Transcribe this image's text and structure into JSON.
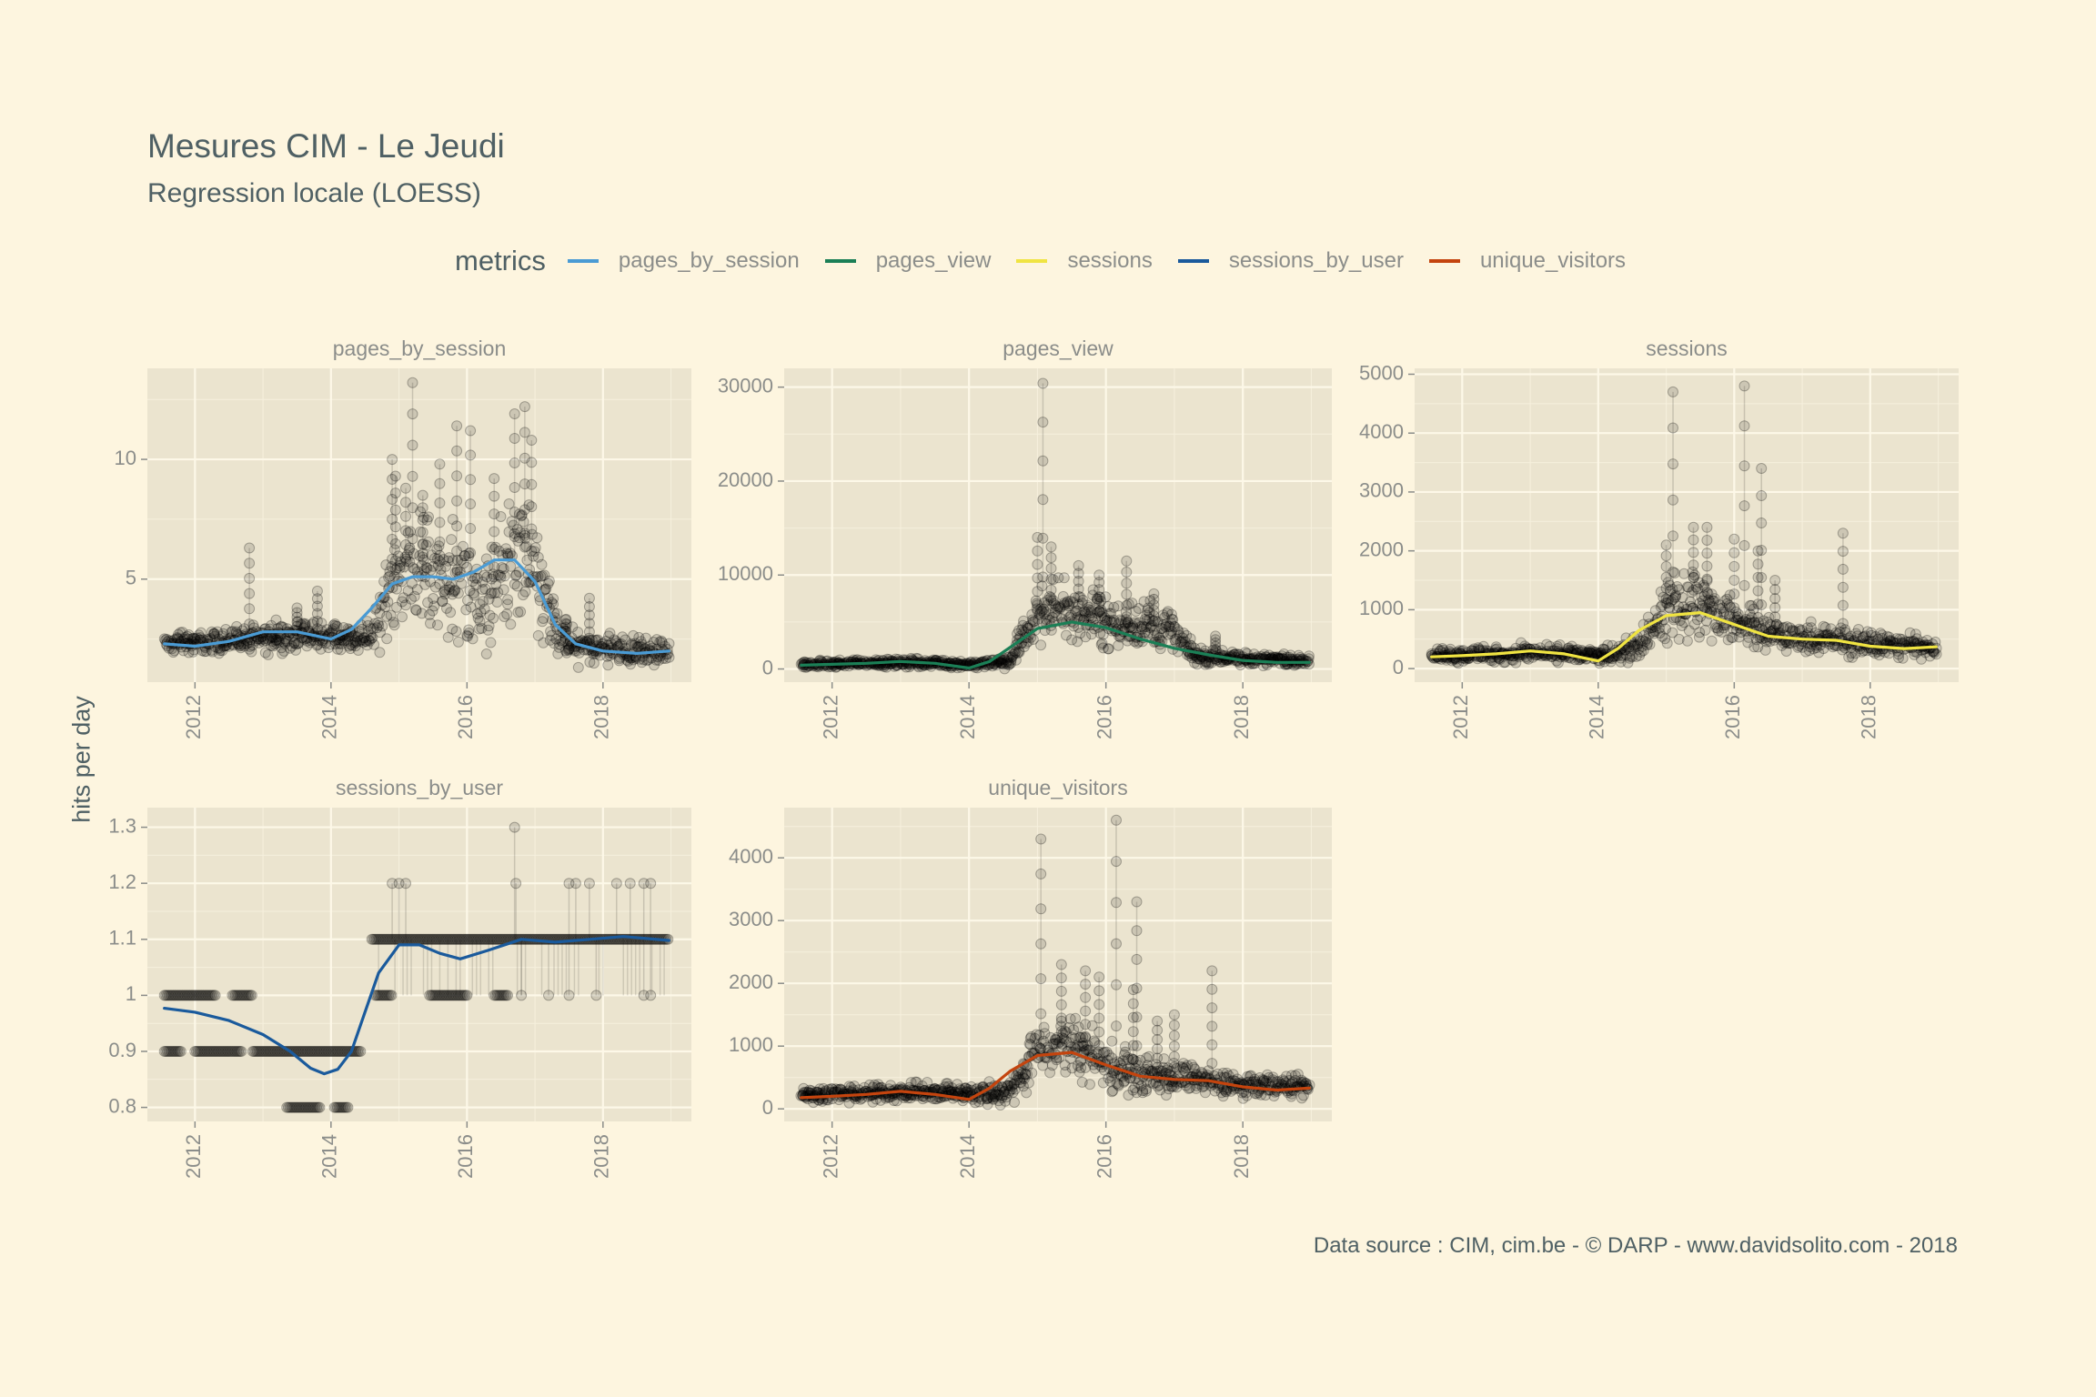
{
  "title": "Mesures CIM - Le Jeudi",
  "subtitle": "Regression locale (LOESS)",
  "ylabel": "hits per day",
  "caption": "Data source : CIM, cim.be - © DARP - www.davidsolito.com - 2018",
  "legend": {
    "title": "metrics",
    "items": [
      {
        "label": "pages_by_session",
        "color": "#4a9bd4"
      },
      {
        "label": "pages_view",
        "color": "#1b7f56"
      },
      {
        "label": "sessions",
        "color": "#f0e442"
      },
      {
        "label": "sessions_by_user",
        "color": "#1a5a9c"
      },
      {
        "label": "unique_visitors",
        "color": "#c4440e"
      }
    ]
  },
  "chart_data": [
    {
      "type": "scatter",
      "name": "pages_by_session",
      "color": "#4a9bd4",
      "xlim": [
        2011.3,
        2019.3
      ],
      "ylim": [
        0.7,
        13.8
      ],
      "yticks": [
        5,
        10
      ],
      "xticks": [
        2012,
        2014,
        2016,
        2018
      ],
      "x_span": [
        2011.55,
        2018.97
      ],
      "band": [
        [
          2011.55,
          1.8,
          2.9
        ],
        [
          2012.5,
          1.8,
          3.0
        ],
        [
          2013.3,
          1.8,
          3.5
        ],
        [
          2014.0,
          2.0,
          3.2
        ],
        [
          2014.4,
          2.0,
          3.0
        ],
        [
          2014.6,
          1.5,
          3.5
        ],
        [
          2014.9,
          2.5,
          7.5
        ],
        [
          2015.3,
          3.0,
          8.0
        ],
        [
          2015.7,
          2.5,
          7.0
        ],
        [
          2016.0,
          2.0,
          9.0
        ],
        [
          2016.2,
          1.6,
          6.0
        ],
        [
          2016.5,
          2.5,
          8.0
        ],
        [
          2016.8,
          3.0,
          9.0
        ],
        [
          2017.1,
          2.0,
          7.0
        ],
        [
          2017.3,
          1.2,
          4.0
        ],
        [
          2017.6,
          1.3,
          3.0
        ],
        [
          2018.3,
          1.3,
          2.7
        ],
        [
          2018.97,
          1.4,
          2.5
        ]
      ],
      "spikes": [
        [
          2014.9,
          10.0
        ],
        [
          2014.95,
          9.3
        ],
        [
          2015.1,
          8.8
        ],
        [
          2015.2,
          13.2
        ],
        [
          2015.35,
          8.5
        ],
        [
          2015.6,
          9.8
        ],
        [
          2015.85,
          11.4
        ],
        [
          2016.05,
          11.2
        ],
        [
          2016.4,
          9.2
        ],
        [
          2016.7,
          11.9
        ],
        [
          2016.85,
          12.2
        ],
        [
          2016.95,
          10.8
        ],
        [
          2012.8,
          6.3
        ],
        [
          2013.5,
          3.8
        ],
        [
          2013.8,
          4.5
        ],
        [
          2017.8,
          4.2
        ],
        [
          2017.45,
          3.3
        ]
      ],
      "smooth_x": [
        2011.55,
        2012.0,
        2012.5,
        2013.0,
        2013.5,
        2014.0,
        2014.3,
        2014.6,
        2014.9,
        2015.2,
        2015.5,
        2015.8,
        2016.1,
        2016.4,
        2016.7,
        2017.0,
        2017.3,
        2017.6,
        2018.0,
        2018.5,
        2018.97
      ],
      "smooth_y": [
        2.3,
        2.2,
        2.4,
        2.8,
        2.8,
        2.5,
        2.9,
        3.8,
        4.8,
        5.1,
        5.1,
        5.0,
        5.3,
        5.8,
        5.8,
        4.9,
        3.1,
        2.3,
        2.0,
        1.9,
        2.0
      ]
    },
    {
      "type": "scatter",
      "name": "pages_view",
      "color": "#1b7f56",
      "xlim": [
        2011.3,
        2019.3
      ],
      "ylim": [
        -1400,
        32000
      ],
      "yticks": [
        0,
        10000,
        20000,
        30000
      ],
      "xticks": [
        2012,
        2014,
        2016,
        2018
      ],
      "x_span": [
        2011.55,
        2018.97
      ],
      "band": [
        [
          2011.55,
          100,
          900
        ],
        [
          2013.0,
          200,
          1200
        ],
        [
          2014.0,
          100,
          900
        ],
        [
          2014.6,
          0,
          1500
        ],
        [
          2014.9,
          2000,
          8000
        ],
        [
          2015.3,
          3000,
          10000
        ],
        [
          2015.8,
          2500,
          9000
        ],
        [
          2016.2,
          1500,
          7000
        ],
        [
          2016.6,
          2000,
          7500
        ],
        [
          2017.0,
          1500,
          6000
        ],
        [
          2017.3,
          500,
          2500
        ],
        [
          2018.0,
          300,
          1800
        ],
        [
          2018.97,
          300,
          1500
        ]
      ],
      "spikes": [
        [
          2015.08,
          30400
        ],
        [
          2015.0,
          14000
        ],
        [
          2015.2,
          13000
        ],
        [
          2015.6,
          11000
        ],
        [
          2016.3,
          11500
        ],
        [
          2015.9,
          10000
        ],
        [
          2016.7,
          8000
        ],
        [
          2017.6,
          3500
        ]
      ],
      "smooth_x": [
        2011.55,
        2012.0,
        2012.5,
        2013.0,
        2013.5,
        2014.0,
        2014.3,
        2014.6,
        2015.0,
        2015.5,
        2016.0,
        2016.5,
        2017.0,
        2017.5,
        2018.0,
        2018.5,
        2018.97
      ],
      "smooth_y": [
        400,
        500,
        600,
        800,
        600,
        100,
        800,
        2300,
        4300,
        5000,
        4400,
        3200,
        2200,
        1500,
        900,
        700,
        700
      ]
    },
    {
      "type": "scatter",
      "name": "sessions",
      "color": "#f0e442",
      "xlim": [
        2011.3,
        2019.3
      ],
      "ylim": [
        -230,
        5100
      ],
      "yticks": [
        0,
        1000,
        2000,
        3000,
        4000,
        5000
      ],
      "xticks": [
        2012,
        2014,
        2016,
        2018
      ],
      "x_span": [
        2011.55,
        2018.97
      ],
      "band": [
        [
          2011.55,
          80,
          350
        ],
        [
          2013.0,
          100,
          450
        ],
        [
          2014.0,
          80,
          350
        ],
        [
          2014.6,
          50,
          600
        ],
        [
          2015.0,
          400,
          1600
        ],
        [
          2015.5,
          500,
          1800
        ],
        [
          2016.0,
          300,
          1300
        ],
        [
          2016.5,
          250,
          900
        ],
        [
          2017.0,
          250,
          850
        ],
        [
          2018.0,
          150,
          650
        ],
        [
          2018.97,
          150,
          600
        ]
      ],
      "spikes": [
        [
          2015.1,
          4700
        ],
        [
          2016.15,
          4800
        ],
        [
          2016.4,
          3400
        ],
        [
          2015.4,
          2400
        ],
        [
          2015.6,
          2400
        ],
        [
          2016.0,
          2200
        ],
        [
          2016.35,
          2000
        ],
        [
          2017.6,
          2300
        ],
        [
          2016.6,
          1500
        ],
        [
          2015.0,
          2100
        ]
      ],
      "smooth_x": [
        2011.55,
        2012.0,
        2012.5,
        2013.0,
        2013.5,
        2014.0,
        2014.3,
        2014.6,
        2015.0,
        2015.5,
        2016.0,
        2016.5,
        2017.0,
        2017.5,
        2018.0,
        2018.5,
        2018.97
      ],
      "smooth_y": [
        200,
        220,
        250,
        300,
        250,
        130,
        350,
        650,
        900,
        950,
        750,
        550,
        500,
        480,
        380,
        340,
        370
      ]
    },
    {
      "type": "scatter",
      "name": "sessions_by_user",
      "color": "#1a5a9c",
      "xlim": [
        2011.3,
        2019.3
      ],
      "ylim": [
        0.775,
        1.335
      ],
      "yticks": [
        0.8,
        0.9,
        1.0,
        1.1,
        1.2,
        1.3
      ],
      "xticks": [
        2012,
        2014,
        2016,
        2018
      ],
      "x_span": [
        2011.55,
        2018.97
      ],
      "levels": [
        {
          "y": 1.0,
          "ranges": [
            [
              2011.55,
              2012.3
            ],
            [
              2012.55,
              2012.85
            ],
            [
              2014.65,
              2014.9
            ],
            [
              2015.45,
              2016.0
            ],
            [
              2016.4,
              2016.6
            ]
          ]
        },
        {
          "y": 0.9,
          "ranges": [
            [
              2011.55,
              2011.8
            ],
            [
              2012.0,
              2012.7
            ],
            [
              2012.85,
              2014.45
            ]
          ]
        },
        {
          "y": 0.8,
          "ranges": [
            [
              2013.35,
              2013.85
            ],
            [
              2014.05,
              2014.25
            ]
          ]
        },
        {
          "y": 1.1,
          "ranges": [
            [
              2014.6,
              2018.97
            ]
          ]
        }
      ],
      "scatter_points": [
        [
          2014.9,
          1.2
        ],
        [
          2015.0,
          1.2
        ],
        [
          2015.1,
          1.2
        ],
        [
          2016.7,
          1.3
        ],
        [
          2016.72,
          1.2
        ],
        [
          2017.5,
          1.2
        ],
        [
          2017.6,
          1.2
        ],
        [
          2017.8,
          1.2
        ],
        [
          2018.2,
          1.2
        ],
        [
          2018.4,
          1.2
        ],
        [
          2018.6,
          1.2
        ],
        [
          2018.7,
          1.2
        ],
        [
          2016.8,
          1.0
        ],
        [
          2017.2,
          1.0
        ],
        [
          2017.5,
          1.0
        ],
        [
          2017.9,
          1.0
        ],
        [
          2018.6,
          1.0
        ],
        [
          2018.7,
          1.0
        ]
      ],
      "smooth_x": [
        2011.55,
        2012.0,
        2012.5,
        2013.0,
        2013.4,
        2013.7,
        2013.9,
        2014.1,
        2014.3,
        2014.5,
        2014.7,
        2015.0,
        2015.3,
        2015.6,
        2015.9,
        2016.3,
        2016.8,
        2017.3,
        2017.8,
        2018.3,
        2018.97
      ],
      "smooth_y": [
        0.977,
        0.97,
        0.955,
        0.93,
        0.9,
        0.87,
        0.86,
        0.868,
        0.9,
        0.97,
        1.04,
        1.09,
        1.09,
        1.075,
        1.065,
        1.08,
        1.1,
        1.095,
        1.1,
        1.105,
        1.098
      ]
    },
    {
      "type": "scatter",
      "name": "unique_visitors",
      "color": "#c4440e",
      "xlim": [
        2011.3,
        2019.3
      ],
      "ylim": [
        -200,
        4800
      ],
      "yticks": [
        0,
        1000,
        2000,
        3000,
        4000
      ],
      "xticks": [
        2012,
        2014,
        2016,
        2018
      ],
      "x_span": [
        2011.55,
        2018.97
      ],
      "band": [
        [
          2011.55,
          80,
          350
        ],
        [
          2013.0,
          100,
          450
        ],
        [
          2014.0,
          80,
          400
        ],
        [
          2014.6,
          50,
          500
        ],
        [
          2015.0,
          400,
          1500
        ],
        [
          2015.5,
          500,
          1600
        ],
        [
          2016.0,
          250,
          1200
        ],
        [
          2016.5,
          200,
          850
        ],
        [
          2017.0,
          200,
          800
        ],
        [
          2018.0,
          150,
          600
        ],
        [
          2018.97,
          150,
          550
        ]
      ],
      "spikes": [
        [
          2015.05,
          4300
        ],
        [
          2016.15,
          4600
        ],
        [
          2016.45,
          3300
        ],
        [
          2015.35,
          2300
        ],
        [
          2015.7,
          2200
        ],
        [
          2015.9,
          2100
        ],
        [
          2016.4,
          1900
        ],
        [
          2017.55,
          2200
        ],
        [
          2016.75,
          1400
        ],
        [
          2017.0,
          1500
        ]
      ],
      "smooth_x": [
        2011.55,
        2012.0,
        2012.5,
        2013.0,
        2013.5,
        2014.0,
        2014.3,
        2014.6,
        2015.0,
        2015.5,
        2016.0,
        2016.5,
        2017.0,
        2017.5,
        2018.0,
        2018.5,
        2018.97
      ],
      "smooth_y": [
        180,
        200,
        230,
        280,
        230,
        150,
        330,
        600,
        850,
        900,
        700,
        520,
        470,
        450,
        350,
        300,
        330
      ]
    }
  ]
}
